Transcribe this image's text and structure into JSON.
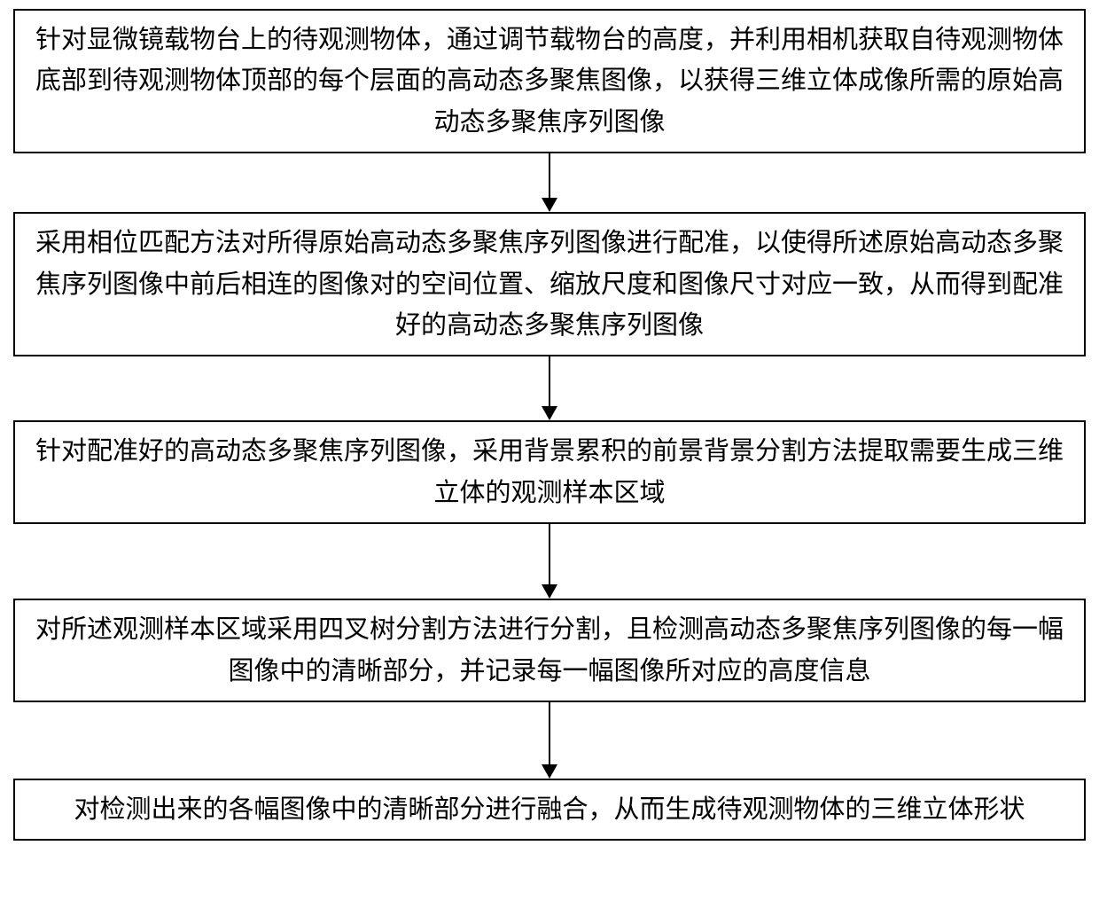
{
  "flowchart": {
    "type": "flowchart",
    "direction": "vertical",
    "background_color": "#ffffff",
    "box_border_color": "#000000",
    "box_border_width": 2,
    "text_color": "#000000",
    "text_fontsize": 29,
    "font_family": "SimSun",
    "arrow_color": "#000000",
    "arrow_line_width": 2,
    "box_width_pct": 100,
    "steps": [
      {
        "id": "step1",
        "text": "针对显微镜载物台上的待观测物体，通过调节载物台的高度，并利用相机获取自待观测物体底部到待观测物体顶部的每个层面的高动态多聚焦图像，以获得三维立体成像所需的原始高动态多聚焦序列图像",
        "arrow_height": 50
      },
      {
        "id": "step2",
        "text": "采用相位匹配方法对所得原始高动态多聚焦序列图像进行配准，以使得所述原始高动态多聚焦序列图像中前后相连的图像对的空间位置、缩放尺度和图像尺寸对应一致，从而得到配准好的高动态多聚焦序列图像",
        "arrow_height": 56
      },
      {
        "id": "step3",
        "text": "针对配准好的高动态多聚焦序列图像，采用背景累积的前景背景分割方法提取需要生成三维立体的观测样本区域",
        "arrow_height": 68
      },
      {
        "id": "step4",
        "text": "对所述观测样本区域采用四叉树分割方法进行分割，且检测高动态多聚焦序列图像的每一幅图像中的清晰部分，并记录每一幅图像所对应的高度信息",
        "arrow_height": 70
      },
      {
        "id": "step5",
        "text": "对检测出来的各幅图像中的清晰部分进行融合，从而生成待观测物体的三维立体形状",
        "arrow_height": 0
      }
    ]
  }
}
